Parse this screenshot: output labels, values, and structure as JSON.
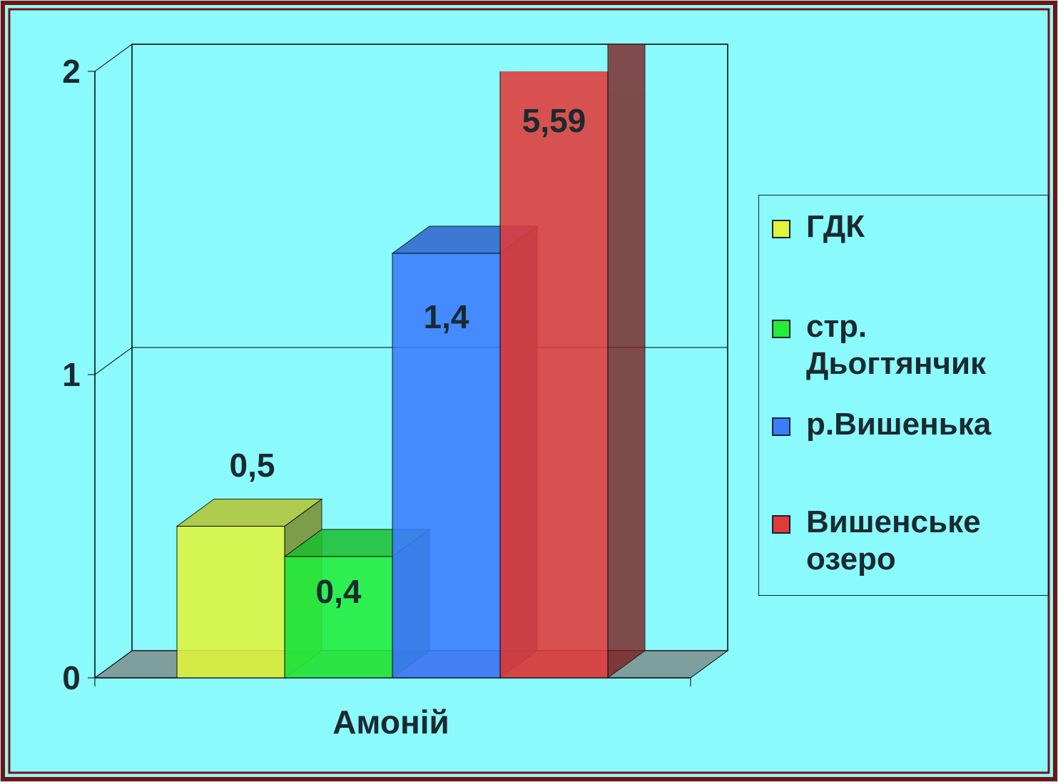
{
  "chart_data": {
    "type": "bar3d",
    "categories": [
      "Амоній"
    ],
    "series": [
      {
        "name": "ГДК",
        "color": "#e0f53c",
        "values": [
          0.5
        ],
        "value_labels": [
          "0,5"
        ]
      },
      {
        "name": "стр. Дьогтянчик",
        "color": "#22ee3a",
        "values": [
          0.4
        ],
        "value_labels": [
          "0,4"
        ]
      },
      {
        "name": "р.Вишенька",
        "color": "#3a7cff",
        "values": [
          1.4
        ],
        "value_labels": [
          "1,4"
        ]
      },
      {
        "name": "Вишенське озеро",
        "color": "#e23a3a",
        "values": [
          5.59
        ],
        "value_labels": [
          "5,59"
        ]
      }
    ],
    "ylim": [
      0,
      2
    ],
    "yticks": [
      0,
      1,
      2
    ],
    "grid": true,
    "legend": "right"
  }
}
